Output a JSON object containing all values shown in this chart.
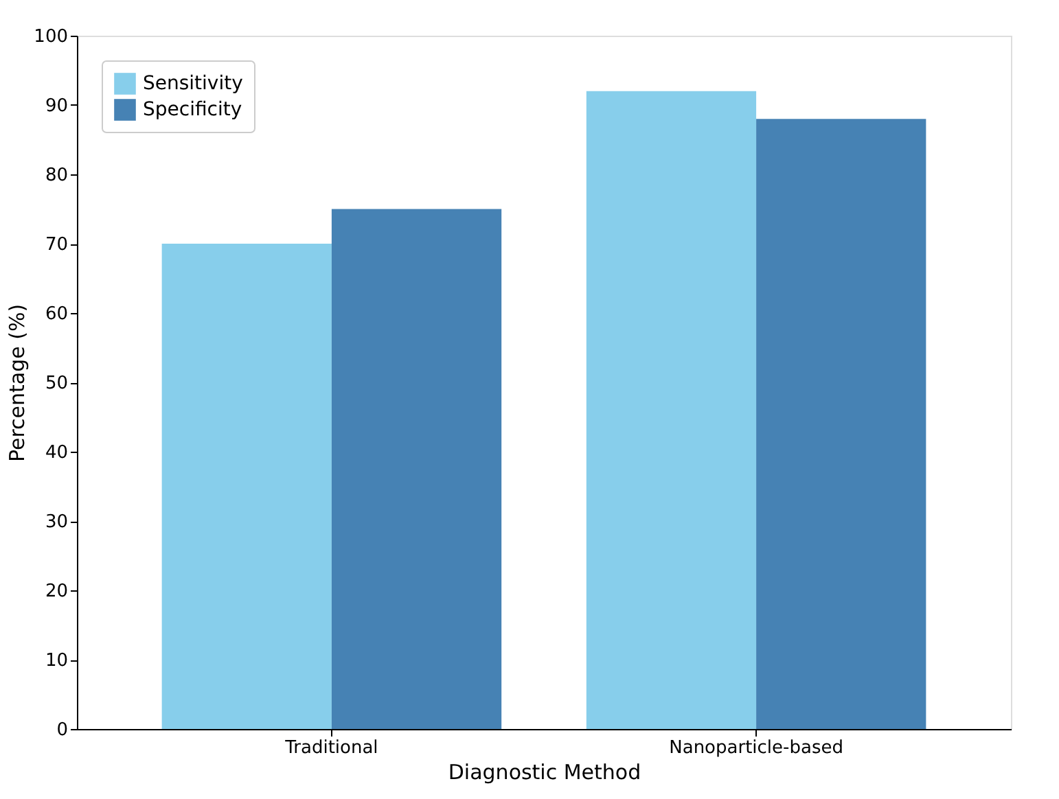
{
  "chart_data": {
    "type": "bar",
    "xlabel": "Diagnostic Method",
    "ylabel": "Percentage (%)",
    "categories": [
      "Traditional",
      "Nanoparticle-based"
    ],
    "series": [
      {
        "name": "Sensitivity",
        "color": "#87ceeb",
        "values": [
          70,
          92
        ]
      },
      {
        "name": "Specificity",
        "color": "#4682b4",
        "values": [
          75,
          88
        ]
      }
    ],
    "ylim": [
      0,
      100
    ],
    "yticks": [
      0,
      10,
      20,
      30,
      40,
      50,
      60,
      70,
      80,
      90,
      100
    ],
    "grid": false,
    "legend": "top left"
  }
}
